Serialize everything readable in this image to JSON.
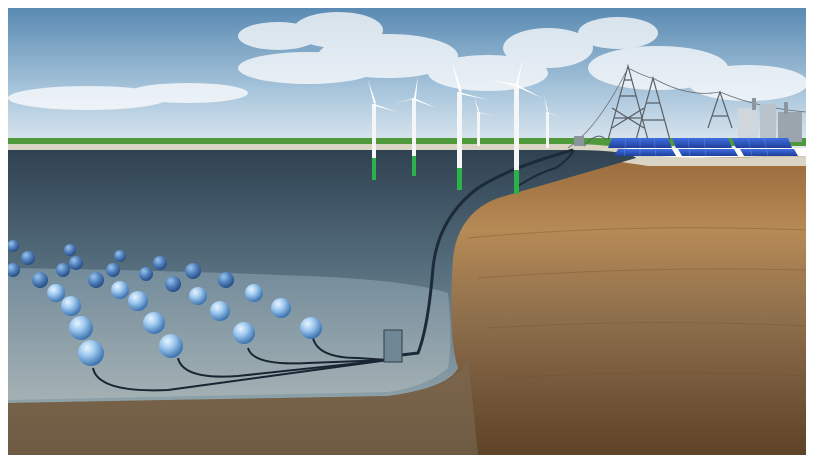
{
  "scene": {
    "description_tags": [
      "wind-turbines",
      "solar-panels",
      "power-pylons",
      "underwater-spheres",
      "seabed-cable"
    ],
    "colors": {
      "sky_top": "#5f8fb6",
      "sky_bottom": "#cfe0ec",
      "sea_bed": "#6f8894",
      "sea_wall": "#3c4f5e",
      "soil_light": "#b7874d",
      "soil_dark": "#6d5030",
      "turbine": "#f4f6f8",
      "turbine_base": "#2bb34a",
      "sphere": "#8fc0ec",
      "solar_panel": "#2a55c8",
      "cable": "#1d2a38"
    }
  }
}
